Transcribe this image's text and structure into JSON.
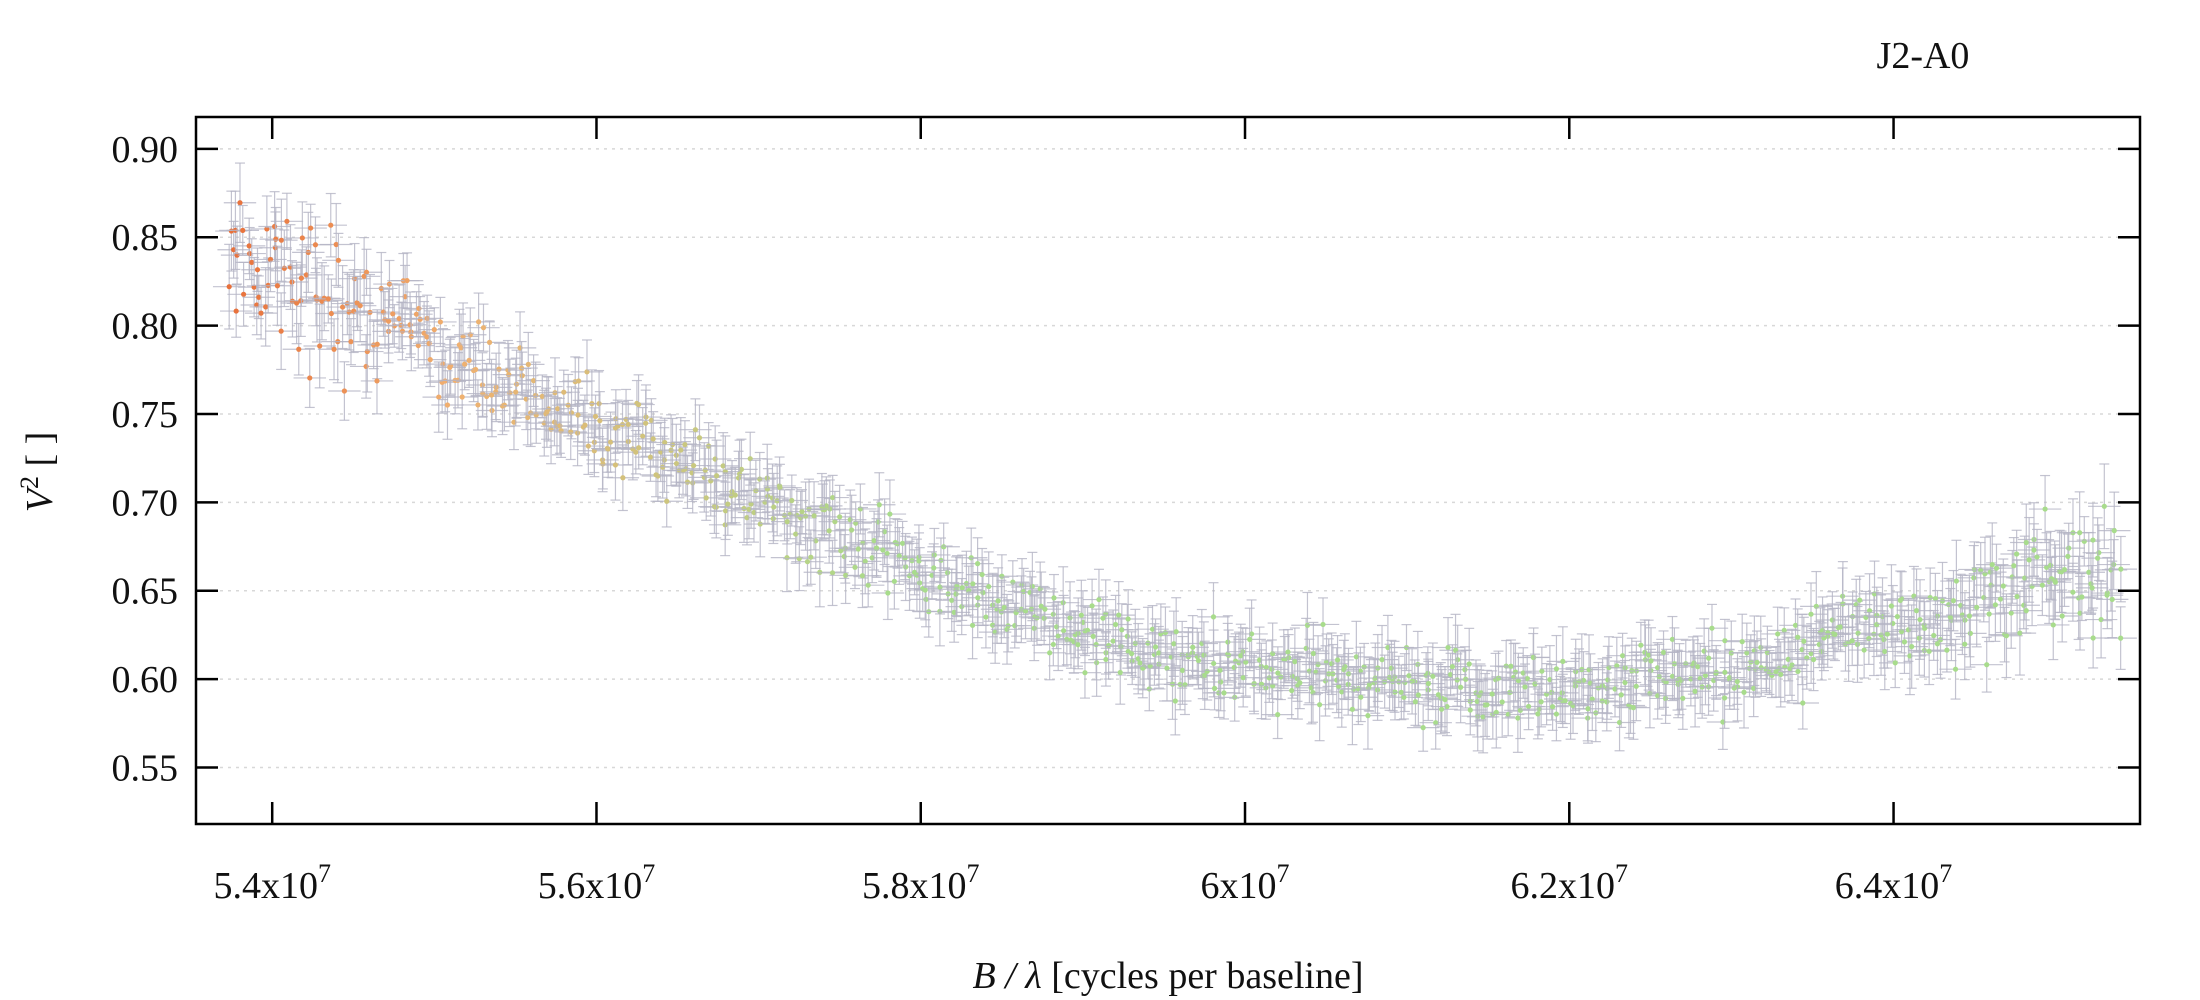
{
  "chart_data": {
    "type": "scatter",
    "title": "J2-A0",
    "xlabel": {
      "symbol": "B / λ",
      "text": " [cycles per baseline]"
    },
    "ylabel": {
      "symbol": "V",
      "superscript": "2",
      "text": " [ ]"
    },
    "xlim": [
      53530000,
      65520000
    ],
    "ylim": [
      0.518,
      0.918
    ],
    "x_ticks": [
      {
        "value": 54000000,
        "mantissa": "5.4x10",
        "exp": "7"
      },
      {
        "value": 56000000,
        "mantissa": "5.6x10",
        "exp": "7"
      },
      {
        "value": 58000000,
        "mantissa": "5.8x10",
        "exp": "7"
      },
      {
        "value": 60000000,
        "mantissa": "6x10",
        "exp": "7"
      },
      {
        "value": 62000000,
        "mantissa": "6.2x10",
        "exp": "7"
      },
      {
        "value": 64000000,
        "mantissa": "6.4x10",
        "exp": "7"
      }
    ],
    "y_ticks": [
      "0.55",
      "0.60",
      "0.65",
      "0.70",
      "0.75",
      "0.80",
      "0.85",
      "0.90"
    ],
    "grid": "horizontal dotted",
    "legend": "none",
    "colors": {
      "errorbar": "#b4b4c4",
      "point_start": "#e8703a",
      "point_mid": "#f0b070",
      "point_end": "#a8dc8c",
      "grid": "#d8d8d8",
      "axis": "#000000"
    },
    "series": [
      {
        "x_range": [
          53730000,
          65400000
        ],
        "point_count": 900,
        "trend": [
          {
            "x": 53730000,
            "y": 0.845
          },
          {
            "x": 54000000,
            "y": 0.835
          },
          {
            "x": 54500000,
            "y": 0.81
          },
          {
            "x": 54800000,
            "y": 0.805
          },
          {
            "x": 55000000,
            "y": 0.785
          },
          {
            "x": 55500000,
            "y": 0.765
          },
          {
            "x": 56000000,
            "y": 0.742
          },
          {
            "x": 56500000,
            "y": 0.725
          },
          {
            "x": 57000000,
            "y": 0.7
          },
          {
            "x": 57500000,
            "y": 0.678
          },
          {
            "x": 58000000,
            "y": 0.66
          },
          {
            "x": 58500000,
            "y": 0.642
          },
          {
            "x": 59000000,
            "y": 0.625
          },
          {
            "x": 59500000,
            "y": 0.612
          },
          {
            "x": 60000000,
            "y": 0.605
          },
          {
            "x": 60500000,
            "y": 0.6
          },
          {
            "x": 61000000,
            "y": 0.596
          },
          {
            "x": 61500000,
            "y": 0.594
          },
          {
            "x": 62000000,
            "y": 0.596
          },
          {
            "x": 62500000,
            "y": 0.6
          },
          {
            "x": 63000000,
            "y": 0.607
          },
          {
            "x": 63500000,
            "y": 0.618
          },
          {
            "x": 64000000,
            "y": 0.63
          },
          {
            "x": 64500000,
            "y": 0.645
          },
          {
            "x": 65000000,
            "y": 0.66
          },
          {
            "x": 65400000,
            "y": 0.662
          }
        ],
        "errorbar_y_half": [
          0.012,
          0.024
        ],
        "errorbar_x_half": 100000
      }
    ]
  }
}
